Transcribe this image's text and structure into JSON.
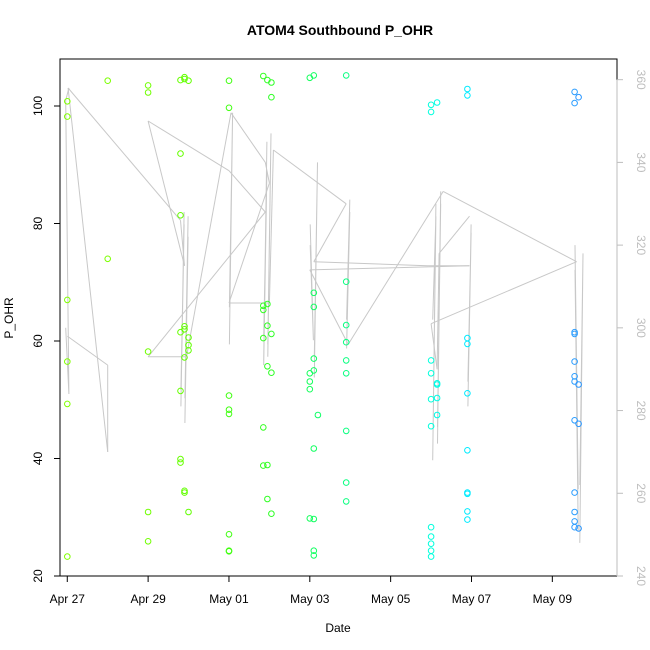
{
  "chart_data": {
    "type": "scatter",
    "title": "ATOM4 Southbound P_OHR",
    "xlabel": "Date",
    "ylabel": "P_OHR",
    "xlim": [
      26.82,
      40.6
    ],
    "ylim": [
      20,
      108
    ],
    "y2lim": [
      240,
      365
    ],
    "x_ticks": [
      {
        "value": 27,
        "label": "Apr 27"
      },
      {
        "value": 29,
        "label": "Apr 29"
      },
      {
        "value": 31,
        "label": "May 01"
      },
      {
        "value": 33,
        "label": "May 03"
      },
      {
        "value": 35,
        "label": "May 05"
      },
      {
        "value": 37,
        "label": "May 07"
      },
      {
        "value": 39,
        "label": "May 09"
      }
    ],
    "y_ticks": [
      20,
      40,
      60,
      80,
      100
    ],
    "y2_ticks": [
      240,
      260,
      280,
      300,
      320,
      340,
      360
    ],
    "colors": {
      "axis": "#000000",
      "right_axis": "#bebebe",
      "line": "#c8c8c8"
    },
    "point_series": [
      {
        "x": 27.0,
        "color": "#80ff00",
        "values": [
          23.3,
          49.3,
          56.5,
          67.0,
          98.2,
          100.8
        ]
      },
      {
        "x": 28.0,
        "color": "#7cff00",
        "values": [
          74.0,
          104.3
        ]
      },
      {
        "x": 29.0,
        "color": "#70ff00",
        "values": [
          25.9,
          30.9,
          58.2,
          102.3,
          103.5
        ]
      },
      {
        "x": 29.8,
        "color": "#66ff00",
        "values": [
          39.3,
          39.9,
          51.5,
          61.5,
          81.4,
          91.9,
          104.4
        ]
      },
      {
        "x": 29.9,
        "color": "#63ff00",
        "values": [
          34.5,
          34.2,
          57.2,
          62.0,
          62.5,
          104.9,
          104.6
        ]
      },
      {
        "x": 30.0,
        "color": "#61ff00",
        "values": [
          30.9,
          58.4,
          59.3,
          60.6,
          104.3
        ]
      },
      {
        "x": 31.0,
        "color": "#40ff10",
        "values": [
          24.2,
          24.3,
          27.1,
          47.6,
          48.3,
          50.7,
          99.7,
          104.3
        ]
      },
      {
        "x": 31.85,
        "color": "#33ff20",
        "values": [
          38.8,
          45.3,
          60.5,
          65.3,
          66.0,
          105.1
        ]
      },
      {
        "x": 31.95,
        "color": "#30ff22",
        "values": [
          38.9,
          33.1,
          55.7,
          62.6,
          66.3,
          104.4
        ]
      },
      {
        "x": 32.05,
        "color": "#2eff26",
        "values": [
          30.6,
          54.6,
          61.2,
          101.5,
          104.0
        ]
      },
      {
        "x": 33.0,
        "color": "#12ff5a",
        "values": [
          29.8,
          51.8,
          53.1,
          54.5,
          104.8
        ]
      },
      {
        "x": 33.1,
        "color": "#10ff60",
        "values": [
          23.5,
          24.3,
          29.7,
          41.7,
          55.0,
          57.0,
          65.8,
          68.2,
          105.2
        ]
      },
      {
        "x": 33.2,
        "color": "#0eff66",
        "values": [
          47.4
        ]
      },
      {
        "x": 33.9,
        "color": "#0aff80",
        "values": [
          32.7,
          35.9,
          44.7,
          54.5,
          56.7,
          59.8,
          62.7,
          70.1,
          105.2
        ]
      },
      {
        "x": 36.0,
        "color": "#00ffdd",
        "values": [
          23.3,
          24.3,
          25.5,
          26.7,
          28.3,
          45.5,
          50.1,
          54.5,
          56.7,
          99.0,
          100.2
        ]
      },
      {
        "x": 36.15,
        "color": "#00fce6",
        "values": [
          47.4,
          50.3,
          52.6,
          52.8,
          100.6
        ]
      },
      {
        "x": 36.9,
        "color": "#00ebff",
        "values": [
          29.6,
          31.0,
          34.0,
          34.2,
          41.4,
          51.1,
          59.5,
          60.5,
          101.8,
          102.9
        ]
      },
      {
        "x": 39.55,
        "color": "#2b9dff",
        "values": [
          28.3,
          29.3,
          30.9,
          34.2,
          46.5,
          53.1,
          54.0,
          56.5,
          61.2,
          61.5,
          100.5,
          102.4
        ]
      },
      {
        "x": 39.65,
        "color": "#2a96ff",
        "values": [
          28.1,
          45.9,
          52.6,
          101.5
        ]
      }
    ],
    "line_series": {
      "name": "right-axis series",
      "axis": "right",
      "sticks": [
        {
          "x": 27.0,
          "values": [
            300,
            284,
            355,
            358
          ]
        },
        {
          "x": 29.85,
          "values": [
            285,
            325,
            281,
            328
          ]
        },
        {
          "x": 29.95,
          "values": [
            283,
            327,
            277,
            322
          ]
        },
        {
          "x": 31.05,
          "values": [
            305,
            352,
            296
          ]
        },
        {
          "x": 31.9,
          "values": [
            298,
            338,
            291,
            345,
            292
          ]
        },
        {
          "x": 32.0,
          "values": [
            296,
            347,
            293
          ]
        },
        {
          "x": 33.05,
          "values": [
            325,
            297,
            320
          ]
        },
        {
          "x": 33.15,
          "values": [
            288,
            340,
            293
          ]
        },
        {
          "x": 33.95,
          "values": [
            302,
            331,
            295,
            328
          ]
        },
        {
          "x": 36.08,
          "values": [
            302,
            327,
            268,
            330
          ]
        },
        {
          "x": 36.2,
          "values": [
            272,
            333,
            276,
            330
          ]
        },
        {
          "x": 36.95,
          "values": [
            287,
            323,
            281,
            325
          ]
        },
        {
          "x": 39.6,
          "values": [
            314,
            251,
            320,
            261
          ]
        },
        {
          "x": 39.72,
          "values": [
            262,
            318,
            248
          ]
        }
      ],
      "connections": [
        [
          27.0,
          298.0
        ],
        [
          28.0,
          291.0
        ],
        [
          28.0,
          270.0
        ],
        [
          27.02,
          358.0
        ],
        [
          29.8,
          326.0
        ],
        [
          29.9,
          315.0
        ],
        [
          29.0,
          350.0
        ],
        [
          31.0,
          338.0
        ],
        [
          31.9,
          328.0
        ],
        [
          29.0,
          293.0
        ],
        [
          29.95,
          293.0
        ],
        [
          31.05,
          352.0
        ],
        [
          31.9,
          340.0
        ],
        [
          32.0,
          335.0
        ],
        [
          31.0,
          306.0
        ],
        [
          32.0,
          306.0
        ],
        [
          32.1,
          343.0
        ],
        [
          33.9,
          330.0
        ],
        [
          33.1,
          316.0
        ],
        [
          35.9,
          315.0
        ],
        [
          36.95,
          315.0
        ],
        [
          33.0,
          314.0
        ],
        [
          33.95,
          296.0
        ],
        [
          36.3,
          333.0
        ],
        [
          39.6,
          316.0
        ],
        [
          36.0,
          301.0
        ],
        [
          36.15,
          290.0
        ],
        [
          36.2,
          318.0
        ],
        [
          36.95,
          327.0
        ]
      ]
    }
  }
}
